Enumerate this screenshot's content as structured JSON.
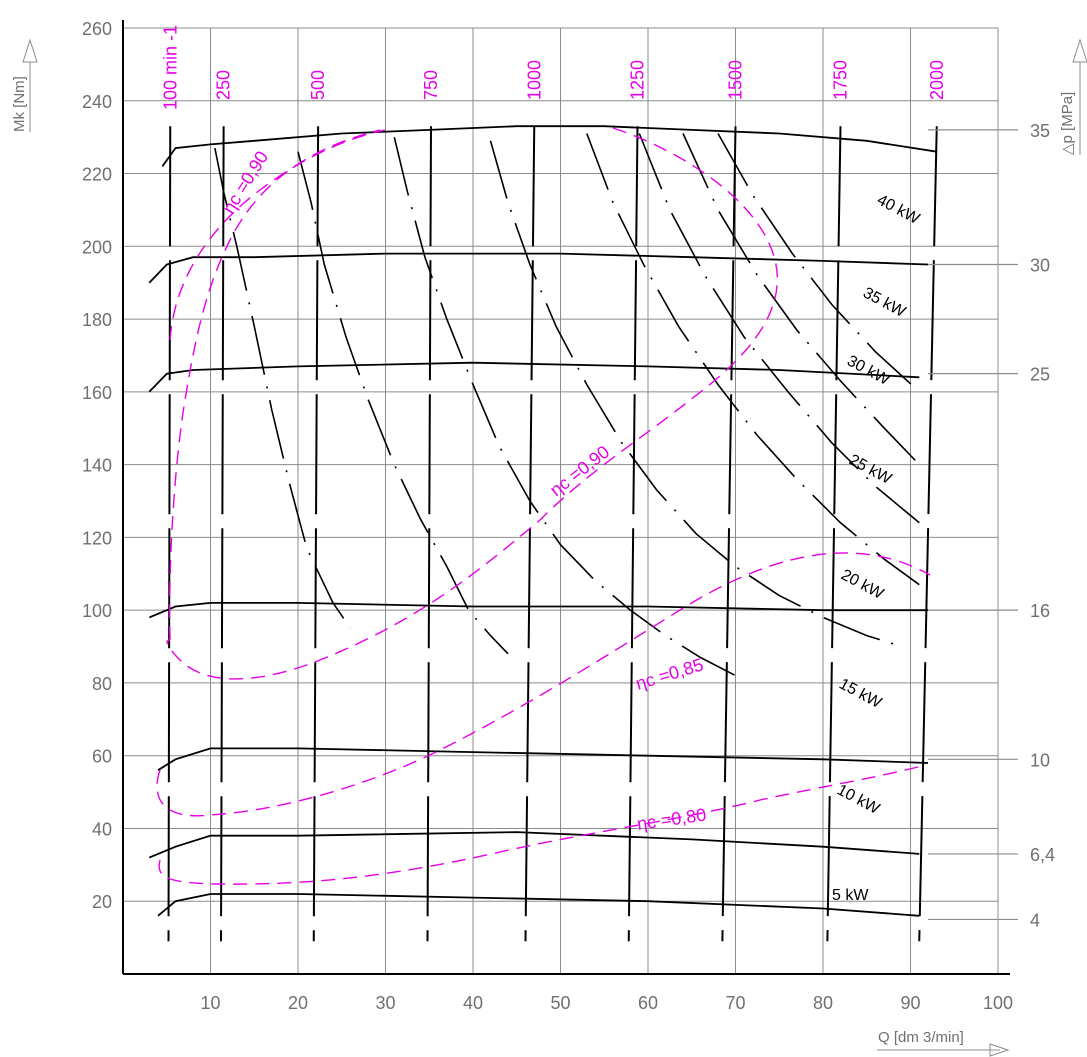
{
  "chart_data": {
    "type": "line",
    "title": "",
    "xlabel": "Q [dm 3/min]",
    "ylabel": "Mk [Nm]",
    "y2label": "△p [MPa]",
    "xlim": [
      0,
      100
    ],
    "ylim": [
      0,
      260
    ],
    "x_ticks": [
      "10",
      "20",
      "30",
      "40",
      "50",
      "60",
      "70",
      "80",
      "90",
      "100"
    ],
    "y_ticks": [
      "20",
      "40",
      "60",
      "80",
      "100",
      "120",
      "140",
      "160",
      "180",
      "200",
      "220",
      "240",
      "260"
    ],
    "pressure_ticks": [
      {
        "label": "35",
        "mk": 232
      },
      {
        "label": "30",
        "mk": 195
      },
      {
        "label": "25",
        "mk": 165
      },
      {
        "label": "16",
        "mk": 100
      },
      {
        "label": "10",
        "mk": 59
      },
      {
        "label": "6,4",
        "mk": 33
      },
      {
        "label": "4",
        "mk": 15
      }
    ],
    "pressure_curves": [
      {
        "name": "35",
        "points": [
          [
            4.5,
            222
          ],
          [
            6,
            227
          ],
          [
            10,
            228
          ],
          [
            15,
            229
          ],
          [
            25,
            231
          ],
          [
            35,
            232
          ],
          [
            45,
            233
          ],
          [
            55,
            233
          ],
          [
            65,
            232
          ],
          [
            75,
            231
          ],
          [
            85,
            229
          ],
          [
            93,
            226
          ]
        ]
      },
      {
        "name": "30",
        "points": [
          [
            3,
            190
          ],
          [
            5,
            195
          ],
          [
            8,
            197
          ],
          [
            15,
            197
          ],
          [
            30,
            198
          ],
          [
            50,
            198
          ],
          [
            65,
            197
          ],
          [
            80,
            196
          ],
          [
            92,
            195
          ]
        ]
      },
      {
        "name": "25",
        "points": [
          [
            3,
            160
          ],
          [
            5,
            165
          ],
          [
            8,
            166
          ],
          [
            20,
            167
          ],
          [
            40,
            168
          ],
          [
            60,
            167
          ],
          [
            75,
            166
          ],
          [
            91,
            164
          ]
        ]
      },
      {
        "name": "16",
        "points": [
          [
            3,
            98
          ],
          [
            6,
            101
          ],
          [
            10,
            102
          ],
          [
            20,
            102
          ],
          [
            40,
            101
          ],
          [
            60,
            101
          ],
          [
            80,
            100
          ],
          [
            92,
            100
          ]
        ]
      },
      {
        "name": "10",
        "points": [
          [
            4,
            56
          ],
          [
            6,
            59
          ],
          [
            10,
            62
          ],
          [
            20,
            62
          ],
          [
            40,
            61
          ],
          [
            60,
            60
          ],
          [
            80,
            59
          ],
          [
            92,
            58
          ]
        ]
      },
      {
        "name": "6,4",
        "points": [
          [
            3,
            32
          ],
          [
            6,
            35
          ],
          [
            10,
            38
          ],
          [
            20,
            38
          ],
          [
            45,
            39
          ],
          [
            65,
            37
          ],
          [
            80,
            35
          ],
          [
            91,
            33
          ]
        ]
      },
      {
        "name": "4",
        "points": [
          [
            4,
            16
          ],
          [
            6,
            20
          ],
          [
            10,
            22
          ],
          [
            20,
            22
          ],
          [
            40,
            21
          ],
          [
            60,
            20
          ],
          [
            80,
            18
          ],
          [
            91,
            16
          ]
        ]
      }
    ],
    "speed_lines": [
      {
        "label": "100 min -1",
        "x": [
          5.4,
          5.2
        ]
      },
      {
        "label": "250",
        "x": [
          11.5,
          11.2
        ]
      },
      {
        "label": "500",
        "x": [
          22.3,
          21.8
        ]
      },
      {
        "label": "750",
        "x": [
          35.2,
          34.8
        ]
      },
      {
        "label": "1000",
        "x": [
          47,
          46
        ]
      },
      {
        "label": "1250",
        "x": [
          58.8,
          57.8
        ]
      },
      {
        "label": "1500",
        "x": [
          70,
          68.5
        ]
      },
      {
        "label": "1750",
        "x": [
          82,
          80.5
        ]
      },
      {
        "label": "2000",
        "x": [
          93,
          91
        ]
      }
    ],
    "power_curves": [
      {
        "label": "40 kW",
        "points": [
          [
            10.5,
            227
          ],
          [
            11.5,
            215
          ],
          [
            13,
            200
          ],
          [
            15,
            178
          ],
          [
            17,
            155
          ],
          [
            19,
            135
          ],
          [
            21,
            117
          ],
          [
            24,
            102
          ],
          [
            26,
            95
          ]
        ]
      },
      {
        "label": "35 kW",
        "points": [
          [
            20,
            226
          ],
          [
            21.5,
            212
          ],
          [
            23,
            195
          ],
          [
            25.5,
            175
          ],
          [
            28,
            158
          ],
          [
            31,
            140
          ],
          [
            34,
            125
          ],
          [
            37,
            112
          ],
          [
            39.5,
            100
          ],
          [
            42,
            93
          ],
          [
            44,
            88
          ]
        ]
      },
      {
        "label": "30 kW",
        "points": [
          [
            31,
            230
          ],
          [
            32.5,
            215
          ],
          [
            34.5,
            197
          ],
          [
            37,
            180
          ],
          [
            40,
            162
          ],
          [
            43,
            145
          ],
          [
            46.5,
            130
          ],
          [
            50,
            118
          ],
          [
            54,
            108
          ],
          [
            58,
            100
          ],
          [
            62,
            93
          ],
          [
            66,
            87
          ],
          [
            70,
            82
          ]
        ]
      },
      {
        "label": "25 kW",
        "points": [
          [
            42,
            229
          ],
          [
            44,
            212
          ],
          [
            46.5,
            195
          ],
          [
            49.5,
            178
          ],
          [
            53,
            162
          ],
          [
            57,
            146
          ],
          [
            61,
            133
          ],
          [
            65.5,
            121
          ],
          [
            70,
            112
          ],
          [
            75,
            104
          ],
          [
            80,
            98
          ],
          [
            85,
            93
          ],
          [
            89,
            90
          ]
        ]
      },
      {
        "label": "20 kW",
        "points": [
          [
            53,
            231
          ],
          [
            56,
            212
          ],
          [
            59.5,
            195
          ],
          [
            63.5,
            178
          ],
          [
            68,
            162
          ],
          [
            72.5,
            148
          ],
          [
            77,
            136
          ],
          [
            82,
            124
          ],
          [
            87,
            114
          ],
          [
            91,
            107
          ]
        ]
      },
      {
        "label": "15 kW",
        "points": [
          [
            59,
            231
          ],
          [
            62.5,
            210
          ],
          [
            66.5,
            192
          ],
          [
            71,
            175
          ],
          [
            76,
            160
          ],
          [
            81,
            146
          ],
          [
            86,
            134
          ],
          [
            91,
            124
          ]
        ]
      },
      {
        "label": "10 kW",
        "points": [
          [
            64,
            231
          ],
          [
            68,
            210
          ],
          [
            72.5,
            192
          ],
          [
            77,
            177
          ],
          [
            82,
            163
          ],
          [
            87,
            150
          ],
          [
            91,
            140
          ]
        ]
      },
      {
        "label": "5 kW",
        "points": [
          [
            68,
            231
          ],
          [
            72,
            214
          ],
          [
            76.5,
            198
          ],
          [
            81,
            184
          ],
          [
            86,
            171
          ],
          [
            91,
            160
          ]
        ]
      }
    ],
    "efficiency_contours": [
      {
        "label": "ηc =0,90",
        "kind": "outer"
      },
      {
        "label": "ηc =0,90",
        "kind": "inner"
      },
      {
        "label": "ηc =0,85",
        "kind": "band"
      },
      {
        "label": "ηc =0,80",
        "kind": "band"
      }
    ],
    "power_labels": [
      "40 kW",
      "35 kW",
      "30 kW",
      "25 kW",
      "20 kW",
      "15 kW",
      "10 kW",
      "5 kW"
    ]
  },
  "colors": {
    "axis": "#000000",
    "grid": "#8c8c8c",
    "curve": "#000000",
    "speed": "#e600e6",
    "efficiency": "#e600e6",
    "text": "#707070"
  }
}
